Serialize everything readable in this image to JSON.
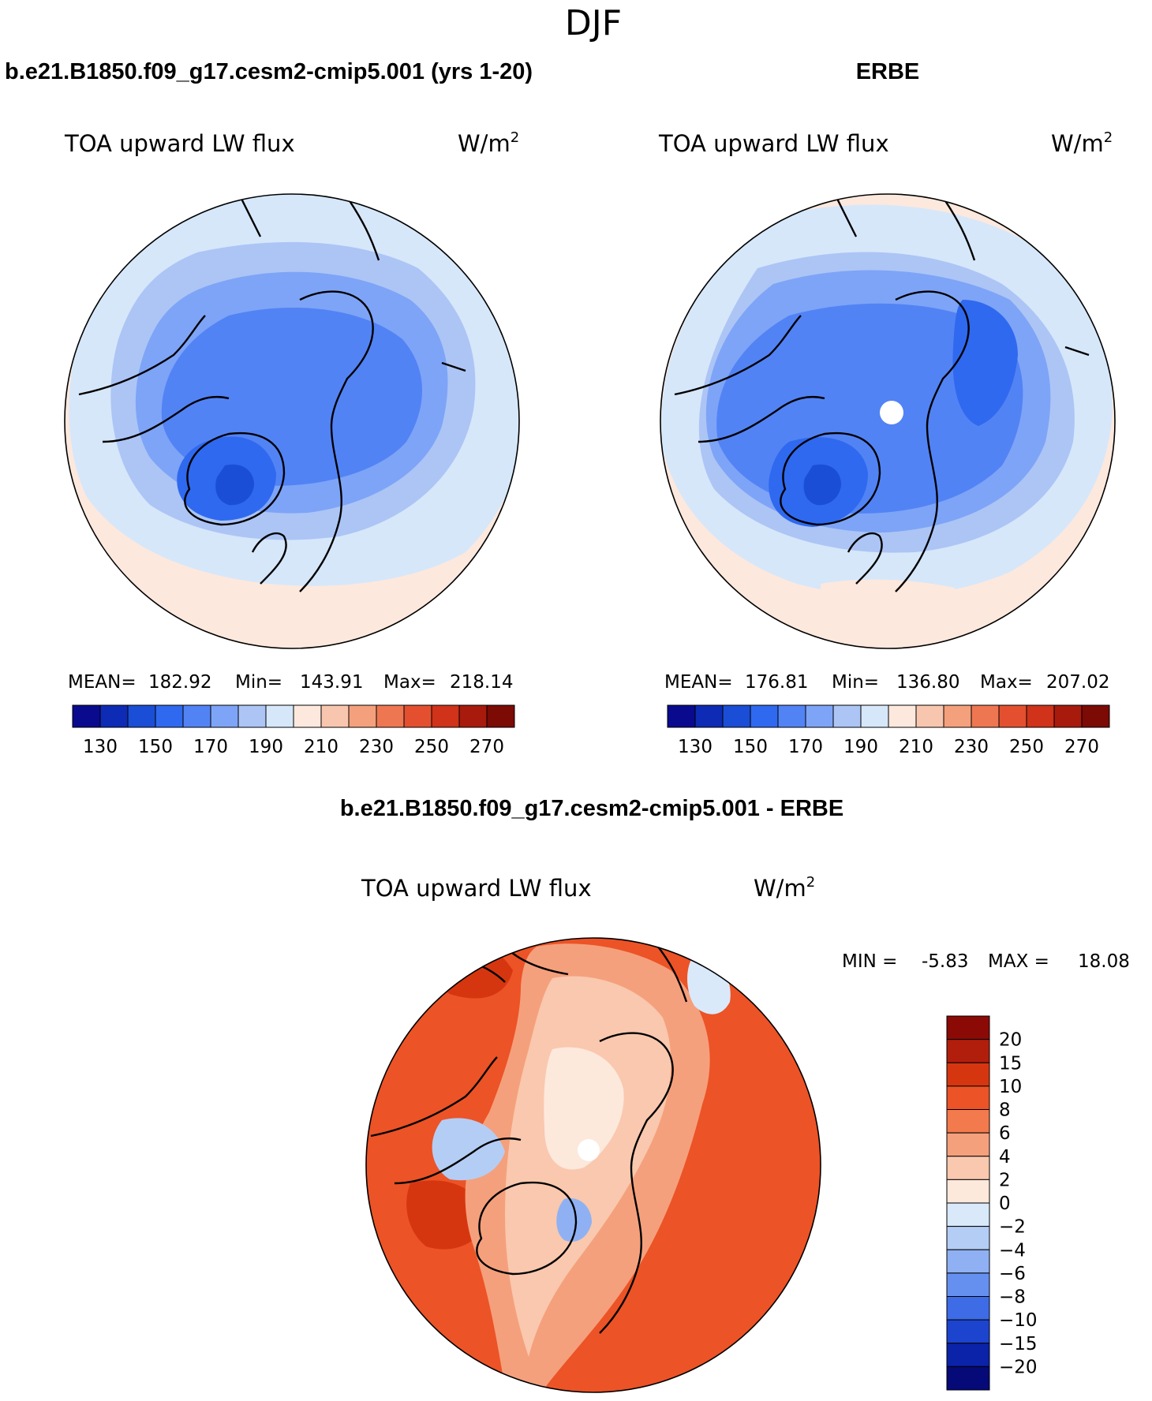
{
  "figure_title": "DJF",
  "chart_data": [
    {
      "type": "heatmap",
      "projection": "north-polar-stereographic",
      "title": "b.e21.B1850.f09_g17.cesm2-cmip5.001 (yrs 1-20)",
      "variable": "TOA upward LW flux",
      "units": "W/m",
      "units_exponent": "2",
      "stats": {
        "mean_label": "MEAN=",
        "mean": "182.92",
        "min_label": "Min=",
        "min": "143.91",
        "max_label": "Max=",
        "max": "218.14"
      },
      "colorbar_levels": [
        130,
        140,
        150,
        160,
        170,
        180,
        190,
        200,
        210,
        220,
        230,
        240,
        250,
        260,
        270
      ],
      "colorbar_tick_labels": [
        "130",
        "150",
        "170",
        "190",
        "210",
        "230",
        "250",
        "270"
      ],
      "colorbar_colors": [
        "#0a0a8f",
        "#0d2bb5",
        "#1a4ed6",
        "#2f69ef",
        "#5283f5",
        "#7ea4f7",
        "#acc5f5",
        "#d6e7fa",
        "#fde8dd",
        "#f8c6ae",
        "#f4a07c",
        "#ee7752",
        "#e4502f",
        "#d0321a",
        "#a81a0c",
        "#7c0a05"
      ]
    },
    {
      "type": "heatmap",
      "projection": "north-polar-stereographic",
      "title": "ERBE",
      "variable": "TOA upward LW flux",
      "units": "W/m",
      "units_exponent": "2",
      "stats": {
        "mean_label": "MEAN=",
        "mean": "176.81",
        "min_label": "Min=",
        "min": "136.80",
        "max_label": "Max=",
        "max": "207.02"
      },
      "colorbar_levels": [
        130,
        140,
        150,
        160,
        170,
        180,
        190,
        200,
        210,
        220,
        230,
        240,
        250,
        260,
        270
      ],
      "colorbar_tick_labels": [
        "130",
        "150",
        "170",
        "190",
        "210",
        "230",
        "250",
        "270"
      ],
      "colorbar_colors": [
        "#0a0a8f",
        "#0d2bb5",
        "#1a4ed6",
        "#2f69ef",
        "#5283f5",
        "#7ea4f7",
        "#acc5f5",
        "#d6e7fa",
        "#fde8dd",
        "#f8c6ae",
        "#f4a07c",
        "#ee7752",
        "#e4502f",
        "#d0321a",
        "#a81a0c",
        "#7c0a05"
      ]
    },
    {
      "type": "heatmap",
      "projection": "north-polar-stereographic",
      "title": "b.e21.B1850.f09_g17.cesm2-cmip5.001 - ERBE",
      "variable": "TOA upward LW flux",
      "units": "W/m",
      "units_exponent": "2",
      "stats": {
        "min_label": "MIN =",
        "min": "-5.83",
        "max_label": "MAX =",
        "max": "18.08"
      },
      "colorbar_levels": [
        20,
        15,
        10,
        8,
        6,
        4,
        2,
        0,
        -2,
        -4,
        -6,
        -8,
        -10,
        -15,
        -20
      ],
      "colorbar_tick_labels": [
        "20",
        "15",
        "10",
        "8",
        "6",
        "4",
        "2",
        "0",
        "−2",
        "−4",
        "−6",
        "−8",
        "−10",
        "−15",
        "−20"
      ],
      "colorbar_colors": [
        "#8c0a05",
        "#b21e0c",
        "#d6360f",
        "#ec5326",
        "#f27a4c",
        "#f5a07c",
        "#f9c8ae",
        "#fde8dc",
        "#d9e9fa",
        "#b4cdf5",
        "#8fb1f3",
        "#6690ef",
        "#3d6ce6",
        "#1d44cf",
        "#0b23a8",
        "#050a78"
      ]
    }
  ]
}
